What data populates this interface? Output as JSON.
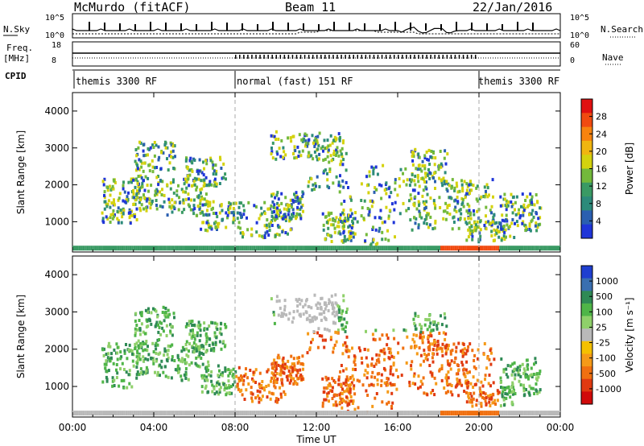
{
  "header": {
    "station": "McMurdo (fitACF)",
    "beam": "Beam 11",
    "date": "22/Jan/2016"
  },
  "top_panel": {
    "left_label_nsky": "N.Sky",
    "nsky_scale_top": "10^5",
    "nsky_scale_bottom": "10^0",
    "right_label_nsearch": "N.Search",
    "nsearch_scale_top": "10^5",
    "nsearch_scale_bottom": "10^0",
    "freq_label": "Freq.",
    "freq_unit": "[MHz]",
    "freq_top": "18",
    "freq_bottom": "8",
    "nave_label": "Nave",
    "nave_top": "60",
    "nave_bottom": "0",
    "cpid_label": "CPID",
    "modes": [
      "themis 3300 RF",
      "normal (fast) 151 RF",
      "themis 3300 RF"
    ]
  },
  "chart_data": [
    {
      "type": "heatmap",
      "name": "power",
      "ylabel": "Slant Range [km]",
      "yticks": [
        1000,
        2000,
        3000,
        4000
      ],
      "ylim": [
        180,
        4500
      ],
      "xlim_hours": [
        0,
        24
      ],
      "xtick_labels": [
        "00:00",
        "04:00",
        "08:00",
        "12:00",
        "16:00",
        "20:00",
        "00:00"
      ],
      "colorbar_label": "Power [dB]",
      "colorbar_ticks": [
        "28",
        "24",
        "20",
        "16",
        "12",
        "8",
        "4"
      ],
      "colorbar_colors": [
        "#e01010",
        "#f04a10",
        "#f7830f",
        "#f0b510",
        "#d4d20e",
        "#73b93b",
        "#3a9a64",
        "#2c8a7a",
        "#2a5fb0",
        "#1f35d8"
      ],
      "mode_switch_hours": [
        8,
        20
      ]
    },
    {
      "type": "heatmap",
      "name": "velocity",
      "ylabel": "Slant Range [km]",
      "yticks": [
        1000,
        2000,
        3000,
        4000
      ],
      "ylim": [
        180,
        4500
      ],
      "xlim_hours": [
        0,
        24
      ],
      "xlabel": "Time UT",
      "xtick_labels": [
        "00:00",
        "04:00",
        "08:00",
        "12:00",
        "16:00",
        "20:00",
        "00:00"
      ],
      "colorbar_label": "Velocity [m s⁻¹]",
      "colorbar_ticks": [
        "1000",
        "500",
        "100",
        "25",
        "-25",
        "-100",
        "-500",
        "-1000"
      ],
      "colorbar_colors": [
        "#1f3fd0",
        "#3a6fb0",
        "#2f8a55",
        "#4fb548",
        "#8fd06a",
        "#b9b9b9",
        "#f5c000",
        "#f59a18",
        "#f07010",
        "#e03a10",
        "#d00a0a"
      ],
      "mode_switch_hours": [
        8,
        20
      ]
    }
  ]
}
